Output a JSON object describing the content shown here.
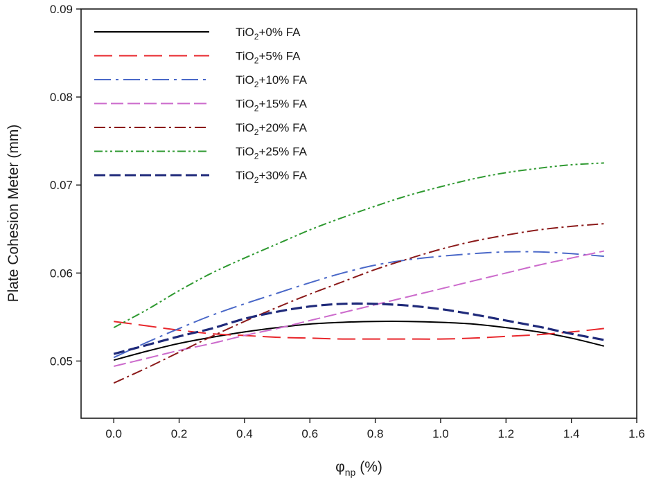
{
  "chart_data": {
    "type": "line",
    "title": "",
    "xlabel": "φnp (%)",
    "xlabel_parts": {
      "symbol": "φ",
      "subscript": "np",
      "unit": "(%)"
    },
    "ylabel": "Plate Cohesion Meter (mm)",
    "xlim": [
      -0.1,
      1.6
    ],
    "ylim": [
      0.0435,
      0.09
    ],
    "x_ticks": [
      0.0,
      0.2,
      0.4,
      0.6,
      0.8,
      1.0,
      1.2,
      1.4,
      1.6
    ],
    "x_tick_labels": [
      "0.0",
      "0.2",
      "0.4",
      "0.6",
      "0.8",
      "1.0",
      "1.2",
      "1.4",
      "1.6"
    ],
    "y_ticks": [
      0.05,
      0.06,
      0.07,
      0.08,
      0.09
    ],
    "y_tick_labels": [
      "0.05",
      "0.06",
      "0.07",
      "0.08",
      "0.09"
    ],
    "legend_position": "top-left",
    "x": [
      0.0,
      0.1,
      0.2,
      0.3,
      0.4,
      0.5,
      0.6,
      0.7,
      0.8,
      0.9,
      1.0,
      1.1,
      1.2,
      1.3,
      1.4,
      1.5
    ],
    "series": [
      {
        "name": "TiO2+0% FA",
        "label_prefix": "TiO",
        "label_sub": "2",
        "label_suffix": "+0% FA",
        "color": "#000000",
        "dash": "",
        "values": [
          0.0501,
          0.0511,
          0.052,
          0.0527,
          0.0533,
          0.0538,
          0.0542,
          0.0544,
          0.0545,
          0.0545,
          0.0544,
          0.0542,
          0.0538,
          0.0533,
          0.0526,
          0.0517
        ]
      },
      {
        "name": "TiO2+5% FA",
        "label_prefix": "TiO",
        "label_sub": "2",
        "label_suffix": "+5% FA",
        "color": "#e8262b",
        "dash": "26 10",
        "values": [
          0.0545,
          0.054,
          0.0535,
          0.0531,
          0.0529,
          0.0527,
          0.0526,
          0.0525,
          0.0525,
          0.0525,
          0.0525,
          0.0526,
          0.0528,
          0.053,
          0.0533,
          0.0537
        ]
      },
      {
        "name": "TiO2+10% FA",
        "label_prefix": "TiO",
        "label_sub": "2",
        "label_suffix": "+10% FA",
        "color": "#4a68c8",
        "dash": "24 7 4 7",
        "values": [
          0.0504,
          0.0521,
          0.0537,
          0.0552,
          0.0565,
          0.0577,
          0.0589,
          0.06,
          0.0609,
          0.0615,
          0.0619,
          0.0622,
          0.0624,
          0.0624,
          0.0622,
          0.0619
        ]
      },
      {
        "name": "TiO2+15% FA",
        "label_prefix": "TiO",
        "label_sub": "2",
        "label_suffix": "+15% FA",
        "color": "#cc6bcc",
        "dash": "18 6",
        "values": [
          0.0494,
          0.0503,
          0.0512,
          0.052,
          0.0529,
          0.0537,
          0.0546,
          0.0555,
          0.0564,
          0.0573,
          0.0582,
          0.0591,
          0.06,
          0.0609,
          0.0617,
          0.0625
        ]
      },
      {
        "name": "TiO2+20% FA",
        "label_prefix": "TiO",
        "label_sub": "2",
        "label_suffix": "+20% FA",
        "color": "#8b1a1a",
        "dash": "16 5 3 5",
        "values": [
          0.0475,
          0.0492,
          0.051,
          0.0528,
          0.0545,
          0.0561,
          0.0576,
          0.059,
          0.0604,
          0.0616,
          0.0627,
          0.0636,
          0.0643,
          0.0649,
          0.0653,
          0.0656
        ]
      },
      {
        "name": "TiO2+25% FA",
        "label_prefix": "TiO",
        "label_sub": "2",
        "label_suffix": "+25% FA",
        "color": "#2e9930",
        "dash": "12 4 3 4 3 4",
        "values": [
          0.0538,
          0.0558,
          0.058,
          0.06,
          0.0617,
          0.0633,
          0.0649,
          0.0663,
          0.0676,
          0.0688,
          0.0698,
          0.0707,
          0.0714,
          0.0719,
          0.0723,
          0.0725
        ]
      },
      {
        "name": "TiO2+30% FA",
        "label_prefix": "TiO",
        "label_sub": "2",
        "label_suffix": "+30% FA",
        "color": "#1f2a7a",
        "dash": "16 6",
        "values": [
          0.0508,
          0.0518,
          0.0528,
          0.0537,
          0.0548,
          0.0556,
          0.0562,
          0.0565,
          0.0565,
          0.0563,
          0.0559,
          0.0553,
          0.0546,
          0.0539,
          0.0531,
          0.0524
        ]
      }
    ]
  }
}
